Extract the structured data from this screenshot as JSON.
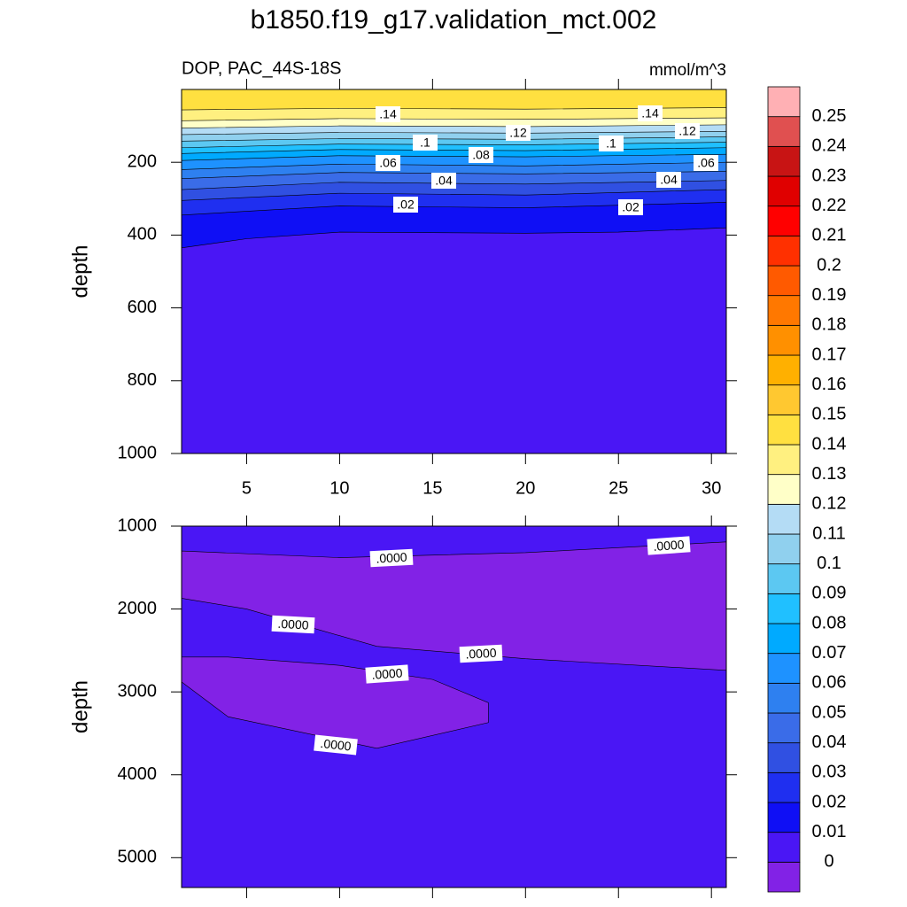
{
  "chart_data": [
    {
      "type": "contour",
      "title": "b1850.f19_g17.validation_mct.002",
      "subtitle": "DOP, PAC_44S-18S",
      "units": "mmol/m^3",
      "ylabel": "depth",
      "xlim": [
        1.5,
        30.8
      ],
      "xticks": [
        5,
        10,
        15,
        20,
        25,
        30
      ],
      "ylim": [
        0,
        1000
      ],
      "yticks": [
        200,
        400,
        600,
        800,
        1000
      ],
      "levels": [
        0,
        0.01,
        0.02,
        0.03,
        0.04,
        0.05,
        0.06,
        0.07,
        0.08,
        0.09,
        0.1,
        0.11,
        0.12,
        0.13,
        0.14,
        0.15,
        0.16,
        0.17,
        0.18,
        0.19,
        0.2,
        0.21,
        0.22,
        0.23,
        0.24,
        0.25
      ],
      "colors": [
        "#8222e6",
        "#4a16f5",
        "#0f0ff5",
        "#1f2ff0",
        "#3050e2",
        "#3a6ce8",
        "#2e80f0",
        "#1e92ff",
        "#00aaff",
        "#20c0ff",
        "#5cc8f2",
        "#90d0ee",
        "#b4dcf5",
        "#ffffc8",
        "#fff080",
        "#ffe040",
        "#ffc830",
        "#ffb000",
        "#ff9000",
        "#ff7800",
        "#ff5a00",
        "#ff3000",
        "#ff0000",
        "#e00000",
        "#c81414",
        "#e05050",
        "#ffb0b4"
      ],
      "contours": [
        {
          "level": 0.01,
          "x": [
            1.5,
            5,
            10,
            20,
            25,
            30.8
          ],
          "y": [
            435,
            410,
            392,
            395,
            392,
            380
          ]
        },
        {
          "level": 0.02,
          "x": [
            1.5,
            10,
            20,
            30.8
          ],
          "y": [
            345,
            320,
            325,
            310
          ]
        },
        {
          "level": 0.03,
          "x": [
            1.5,
            10,
            20,
            30.8
          ],
          "y": [
            305,
            285,
            290,
            275
          ]
        },
        {
          "level": 0.04,
          "x": [
            1.5,
            10,
            20,
            30.8
          ],
          "y": [
            275,
            255,
            260,
            250
          ]
        },
        {
          "level": 0.05,
          "x": [
            1.5,
            10,
            20,
            30.8
          ],
          "y": [
            245,
            228,
            232,
            225
          ]
        },
        {
          "level": 0.06,
          "x": [
            1.5,
            10,
            20,
            30.8
          ],
          "y": [
            220,
            205,
            210,
            200
          ]
        },
        {
          "level": 0.07,
          "x": [
            1.5,
            10,
            20,
            30.8
          ],
          "y": [
            195,
            182,
            185,
            178
          ]
        },
        {
          "level": 0.08,
          "x": [
            1.5,
            10,
            20,
            30.8
          ],
          "y": [
            176,
            165,
            168,
            160
          ]
        },
        {
          "level": 0.09,
          "x": [
            1.5,
            10,
            20,
            30.8
          ],
          "y": [
            160,
            150,
            152,
            145
          ]
        },
        {
          "level": 0.1,
          "x": [
            1.5,
            10,
            20,
            30.8
          ],
          "y": [
            142,
            135,
            137,
            130
          ]
        },
        {
          "level": 0.11,
          "x": [
            1.5,
            10,
            20,
            30.8
          ],
          "y": [
            124,
            118,
            120,
            115
          ]
        },
        {
          "level": 0.12,
          "x": [
            1.5,
            10,
            20,
            30.8
          ],
          "y": [
            106,
            100,
            102,
            97
          ]
        },
        {
          "level": 0.13,
          "x": [
            1.5,
            10,
            20,
            30.8
          ],
          "y": [
            86,
            80,
            82,
            78
          ]
        },
        {
          "level": 0.14,
          "x": [
            1.5,
            10,
            20,
            30.8
          ],
          "y": [
            56,
            52,
            54,
            50
          ]
        }
      ],
      "contour_labels": [
        ".14",
        ".14",
        ".12",
        ".12",
        ".1",
        ".1",
        ".08",
        ".06",
        ".06",
        ".04",
        ".04",
        ".02",
        ".02"
      ]
    },
    {
      "type": "contour",
      "ylabel": "depth",
      "xlim": [
        1.5,
        30.8
      ],
      "ylim": [
        1000,
        5360
      ],
      "yticks": [
        1000,
        2000,
        3000,
        4000,
        5000
      ],
      "regions": [
        {
          "x": [
            1.5,
            10,
            20,
            30.8,
            30.8,
            20,
            12,
            5,
            1.5
          ],
          "y": [
            1300,
            1380,
            1320,
            1190,
            2740,
            2600,
            2450,
            2000,
            1870
          ]
        },
        {
          "x": [
            1.5,
            4,
            10,
            15,
            18,
            18,
            12,
            4,
            1.5
          ],
          "y": [
            2580,
            2580,
            2680,
            2850,
            3130,
            3370,
            3680,
            3300,
            2880
          ]
        }
      ],
      "contour_labels": [
        ".0000",
        ".0000",
        ".0000",
        ".0000",
        ".0000",
        ".0000"
      ]
    }
  ]
}
